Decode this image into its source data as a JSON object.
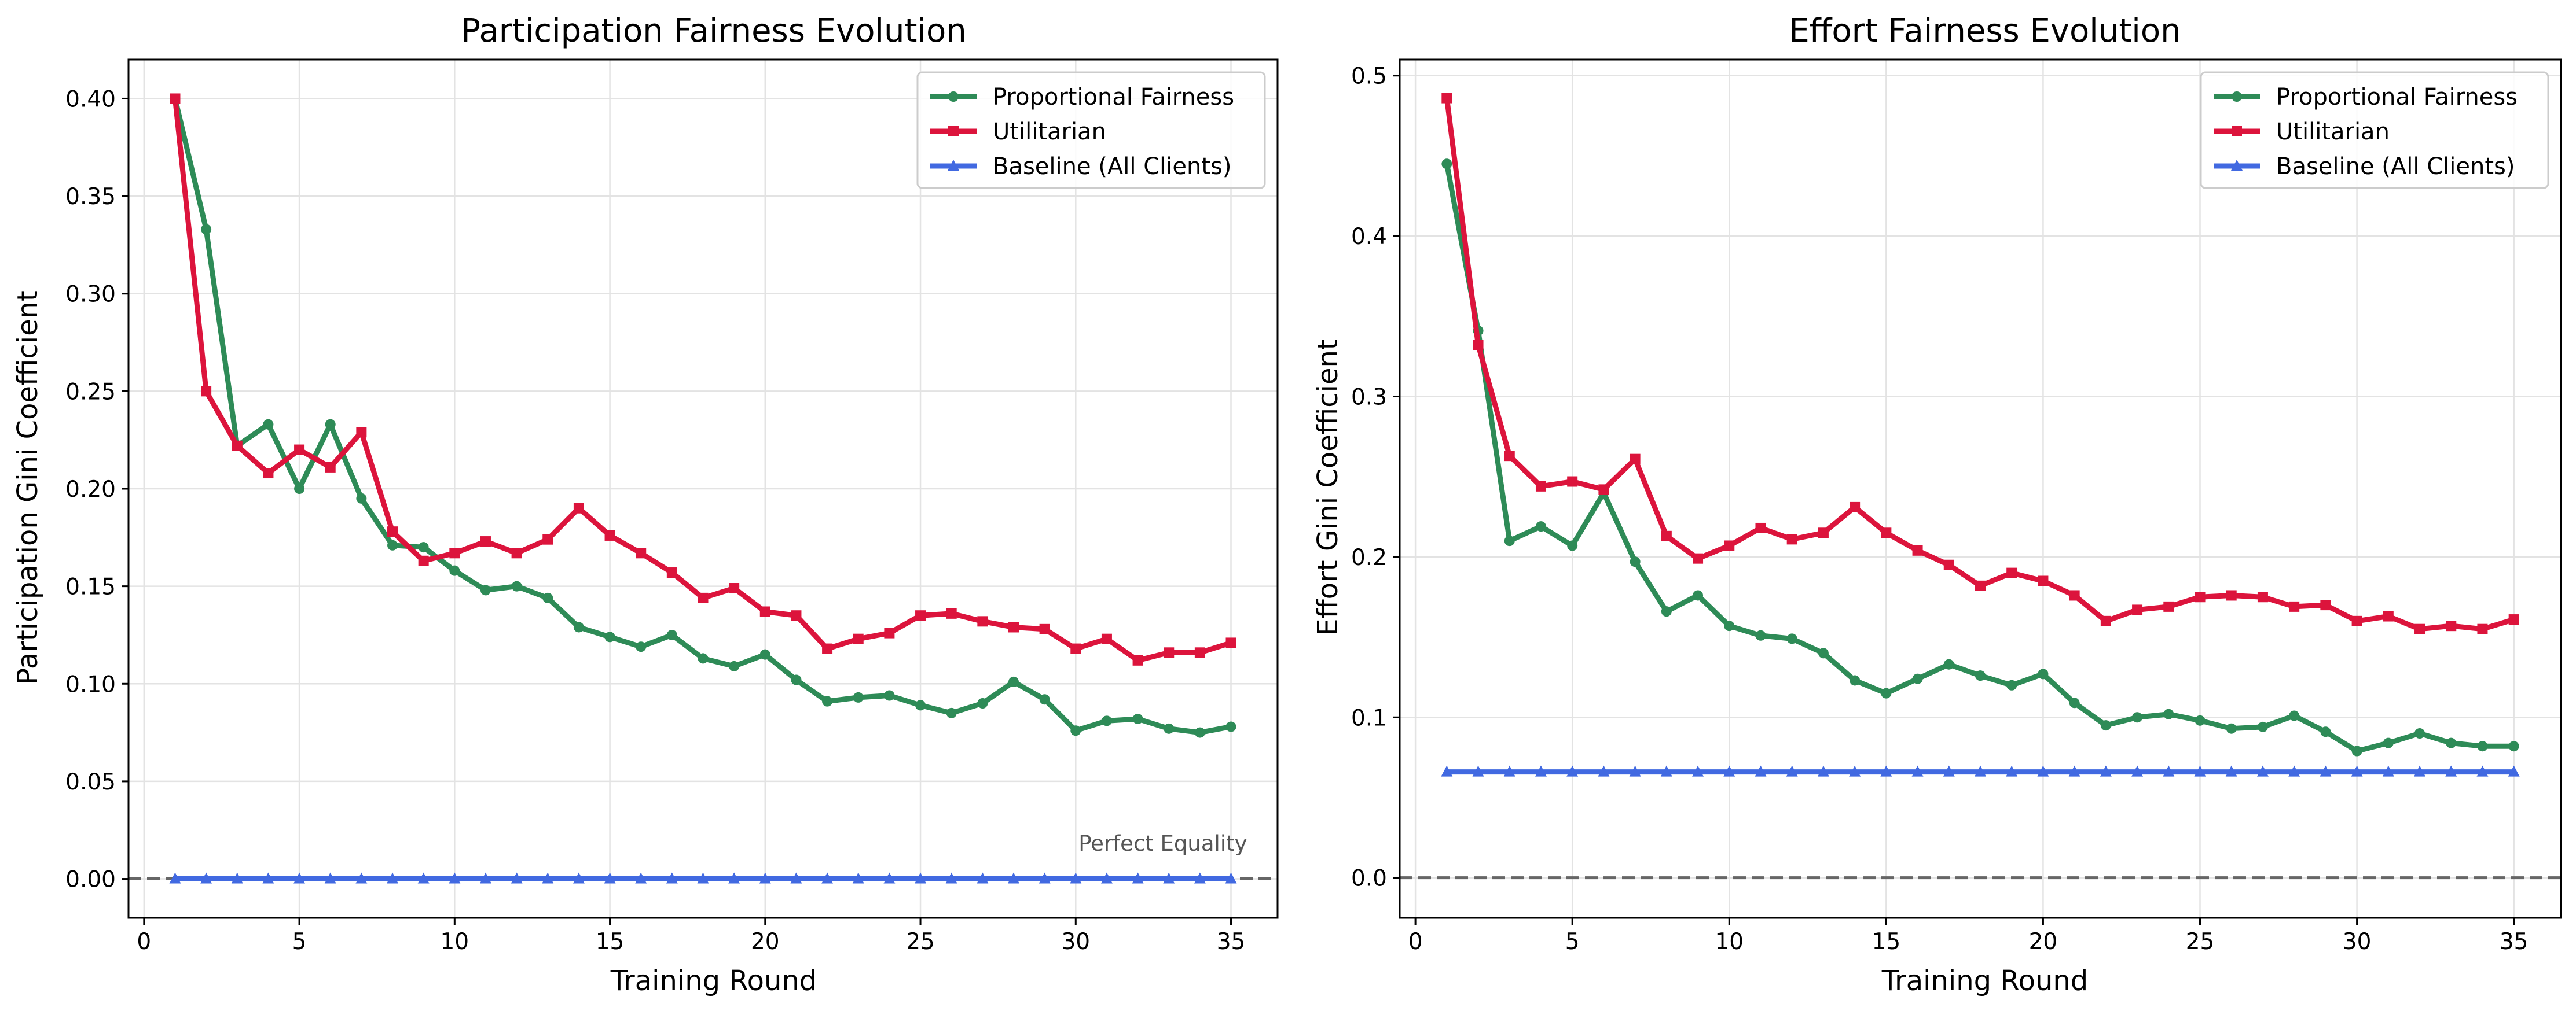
{
  "chart_data": [
    {
      "type": "line",
      "title": "Participation Fairness Evolution",
      "xlabel": "Training Round",
      "ylabel": "Participation Gini Coefficient",
      "xlim": [
        -0.5,
        36.5
      ],
      "ylim": [
        -0.02,
        0.42
      ],
      "xticks": [
        0,
        5,
        10,
        15,
        20,
        25,
        30,
        35
      ],
      "yticks": [
        0.0,
        0.05,
        0.1,
        0.15,
        0.2,
        0.25,
        0.3,
        0.35,
        0.4
      ],
      "ytick_labels": [
        "0.00",
        "0.05",
        "0.10",
        "0.15",
        "0.20",
        "0.25",
        "0.30",
        "0.35",
        "0.40"
      ],
      "grid": true,
      "legend_position": "top-right",
      "reference_line": {
        "y": 0.0,
        "style": "dashed",
        "color": "#666666"
      },
      "annotation": {
        "text": "Perfect Equality",
        "x": 35,
        "y": 0.018
      },
      "x": [
        1,
        2,
        3,
        4,
        5,
        6,
        7,
        8,
        9,
        10,
        11,
        12,
        13,
        14,
        15,
        16,
        17,
        18,
        19,
        20,
        21,
        22,
        23,
        24,
        25,
        26,
        27,
        28,
        29,
        30,
        31,
        32,
        33,
        34,
        35
      ],
      "series": [
        {
          "name": "Proportional Fairness",
          "color": "#2e8b57",
          "marker": "circle",
          "values": [
            0.4,
            0.333,
            0.222,
            0.233,
            0.2,
            0.233,
            0.195,
            0.171,
            0.17,
            0.158,
            0.148,
            0.15,
            0.144,
            0.129,
            0.124,
            0.119,
            0.125,
            0.113,
            0.109,
            0.115,
            0.102,
            0.091,
            0.093,
            0.094,
            0.089,
            0.085,
            0.09,
            0.101,
            0.092,
            0.076,
            0.081,
            0.082,
            0.077,
            0.075,
            0.078
          ]
        },
        {
          "name": "Utilitarian",
          "color": "#dc143c",
          "marker": "square",
          "values": [
            0.4,
            0.25,
            0.222,
            0.208,
            0.22,
            0.211,
            0.229,
            0.178,
            0.163,
            0.167,
            0.173,
            0.167,
            0.174,
            0.19,
            0.176,
            0.167,
            0.157,
            0.144,
            0.149,
            0.137,
            0.135,
            0.118,
            0.123,
            0.126,
            0.135,
            0.136,
            0.132,
            0.129,
            0.128,
            0.118,
            0.123,
            0.112,
            0.116,
            0.116,
            0.121
          ]
        },
        {
          "name": "Baseline (All Clients)",
          "color": "#4169e1",
          "marker": "triangle",
          "values": [
            0,
            0,
            0,
            0,
            0,
            0,
            0,
            0,
            0,
            0,
            0,
            0,
            0,
            0,
            0,
            0,
            0,
            0,
            0,
            0,
            0,
            0,
            0,
            0,
            0,
            0,
            0,
            0,
            0,
            0,
            0,
            0,
            0,
            0,
            0
          ]
        }
      ]
    },
    {
      "type": "line",
      "title": "Effort Fairness Evolution",
      "xlabel": "Training Round",
      "ylabel": "Effort Gini Coefficient",
      "xlim": [
        -0.5,
        36.5
      ],
      "ylim": [
        -0.025,
        0.51
      ],
      "xticks": [
        0,
        5,
        10,
        15,
        20,
        25,
        30,
        35
      ],
      "yticks": [
        0.0,
        0.1,
        0.2,
        0.3,
        0.4,
        0.5
      ],
      "ytick_labels": [
        "0.0",
        "0.1",
        "0.2",
        "0.3",
        "0.4",
        "0.5"
      ],
      "grid": true,
      "legend_position": "top-right",
      "reference_line": {
        "y": 0.0,
        "style": "dashed",
        "color": "#666666"
      },
      "x": [
        1,
        2,
        3,
        4,
        5,
        6,
        7,
        8,
        9,
        10,
        11,
        12,
        13,
        14,
        15,
        16,
        17,
        18,
        19,
        20,
        21,
        22,
        23,
        24,
        25,
        26,
        27,
        28,
        29,
        30,
        31,
        32,
        33,
        34,
        35
      ],
      "series": [
        {
          "name": "Proportional Fairness",
          "color": "#2e8b57",
          "marker": "circle",
          "values": [
            0.445,
            0.341,
            0.21,
            0.219,
            0.207,
            0.24,
            0.197,
            0.166,
            0.176,
            0.157,
            0.151,
            0.149,
            0.14,
            0.123,
            0.115,
            0.124,
            0.133,
            0.126,
            0.12,
            0.127,
            0.109,
            0.095,
            0.1,
            0.102,
            0.098,
            0.093,
            0.094,
            0.101,
            0.091,
            0.079,
            0.084,
            0.09,
            0.084,
            0.082,
            0.082
          ]
        },
        {
          "name": "Utilitarian",
          "color": "#dc143c",
          "marker": "square",
          "values": [
            0.486,
            0.332,
            0.263,
            0.244,
            0.247,
            0.242,
            0.261,
            0.213,
            0.199,
            0.207,
            0.218,
            0.211,
            0.215,
            0.231,
            0.215,
            0.204,
            0.195,
            0.182,
            0.19,
            0.185,
            0.176,
            0.16,
            0.167,
            0.169,
            0.175,
            0.176,
            0.175,
            0.169,
            0.17,
            0.16,
            0.163,
            0.155,
            0.157,
            0.155,
            0.161
          ]
        },
        {
          "name": "Baseline (All Clients)",
          "color": "#4169e1",
          "marker": "triangle",
          "values": [
            0.066,
            0.066,
            0.066,
            0.066,
            0.066,
            0.066,
            0.066,
            0.066,
            0.066,
            0.066,
            0.066,
            0.066,
            0.066,
            0.066,
            0.066,
            0.066,
            0.066,
            0.066,
            0.066,
            0.066,
            0.066,
            0.066,
            0.066,
            0.066,
            0.066,
            0.066,
            0.066,
            0.066,
            0.066,
            0.066,
            0.066,
            0.066,
            0.066,
            0.066,
            0.066
          ]
        }
      ]
    }
  ]
}
